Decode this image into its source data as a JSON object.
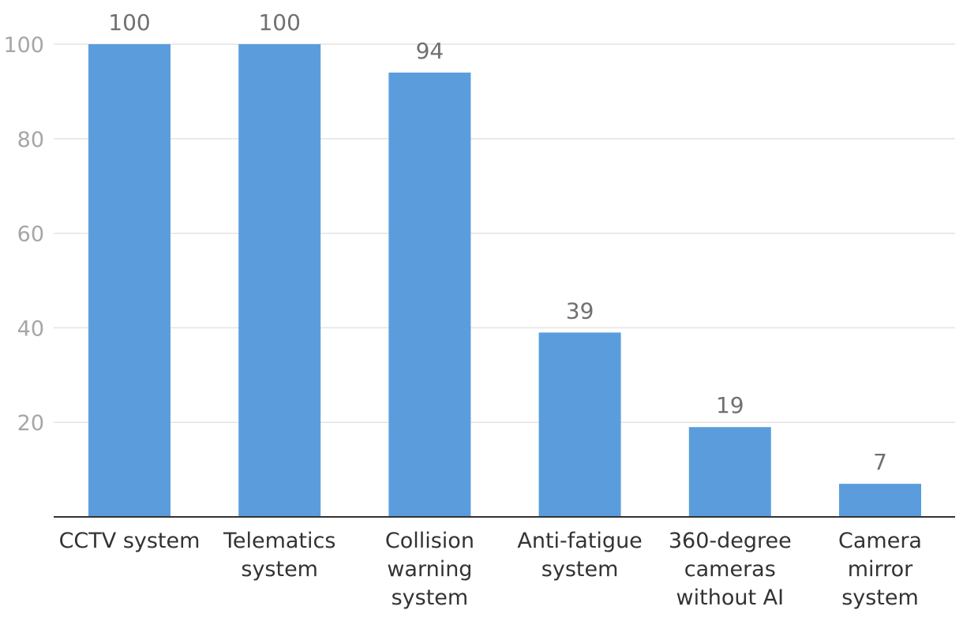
{
  "colors": {
    "bar": "#5b9ddc"
  },
  "chart_data": {
    "type": "bar",
    "categories": [
      "CCTV system",
      "Telematics system",
      "Collision warning system",
      "Anti-fatigue system",
      "360-degree cameras without AI",
      "Camera mirror system"
    ],
    "category_lines": [
      [
        "CCTV system"
      ],
      [
        "Telematics",
        "system"
      ],
      [
        "Collision",
        "warning",
        "system"
      ],
      [
        "Anti-fatigue",
        "system"
      ],
      [
        "360-degree",
        "cameras",
        "without AI"
      ],
      [
        "Camera",
        "mirror",
        "system"
      ]
    ],
    "values": [
      100,
      100,
      94,
      39,
      19,
      7
    ],
    "value_labels": [
      "100",
      "100",
      "94",
      "39",
      "19",
      "7"
    ],
    "yticks": [
      20,
      40,
      60,
      80,
      100
    ],
    "ytick_labels": [
      "20",
      "40",
      "60",
      "80",
      "100"
    ],
    "ylim": [
      0,
      100
    ],
    "grid": true,
    "title": "",
    "xlabel": "",
    "ylabel": ""
  }
}
